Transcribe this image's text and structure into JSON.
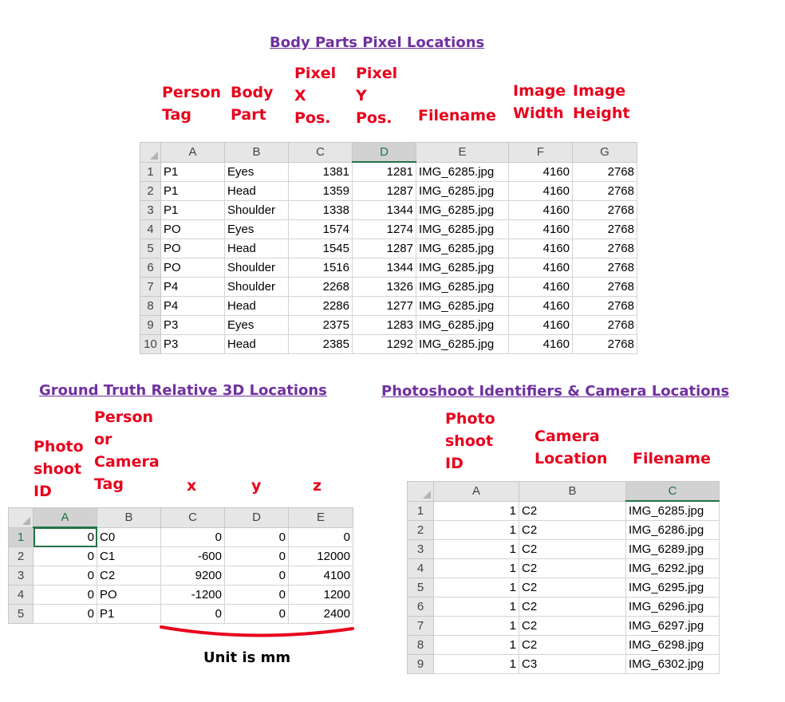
{
  "body_parts": {
    "title": "Body Parts Pixel Locations",
    "headers": {
      "person_tag": "Person\nTag",
      "body_part": "Body\nPart",
      "pixel_x": "Pixel\nX\nPos.",
      "pixel_y": "Pixel\nY\nPos.",
      "filename": "Filename",
      "image_width": "Image\nWidth",
      "image_height": "Image\nHeight"
    },
    "columns": [
      "A",
      "B",
      "C",
      "D",
      "E",
      "F",
      "G"
    ],
    "rows": [
      {
        "n": "1",
        "a": "P1",
        "b": "Eyes",
        "c": "1381",
        "d": "1281",
        "e": "IMG_6285.jpg",
        "f": "4160",
        "g": "2768"
      },
      {
        "n": "2",
        "a": "P1",
        "b": "Head",
        "c": "1359",
        "d": "1287",
        "e": "IMG_6285.jpg",
        "f": "4160",
        "g": "2768"
      },
      {
        "n": "3",
        "a": "P1",
        "b": "Shoulder",
        "c": "1338",
        "d": "1344",
        "e": "IMG_6285.jpg",
        "f": "4160",
        "g": "2768"
      },
      {
        "n": "4",
        "a": "PO",
        "b": "Eyes",
        "c": "1574",
        "d": "1274",
        "e": "IMG_6285.jpg",
        "f": "4160",
        "g": "2768"
      },
      {
        "n": "5",
        "a": "PO",
        "b": "Head",
        "c": "1545",
        "d": "1287",
        "e": "IMG_6285.jpg",
        "f": "4160",
        "g": "2768"
      },
      {
        "n": "6",
        "a": "PO",
        "b": "Shoulder",
        "c": "1516",
        "d": "1344",
        "e": "IMG_6285.jpg",
        "f": "4160",
        "g": "2768"
      },
      {
        "n": "7",
        "a": "P4",
        "b": "Shoulder",
        "c": "2268",
        "d": "1326",
        "e": "IMG_6285.jpg",
        "f": "4160",
        "g": "2768"
      },
      {
        "n": "8",
        "a": "P4",
        "b": "Head",
        "c": "2286",
        "d": "1277",
        "e": "IMG_6285.jpg",
        "f": "4160",
        "g": "2768"
      },
      {
        "n": "9",
        "a": "P3",
        "b": "Eyes",
        "c": "2375",
        "d": "1283",
        "e": "IMG_6285.jpg",
        "f": "4160",
        "g": "2768"
      },
      {
        "n": "10",
        "a": "P3",
        "b": "Head",
        "c": "2385",
        "d": "1292",
        "e": "IMG_6285.jpg",
        "f": "4160",
        "g": "2768"
      }
    ]
  },
  "ground_truth": {
    "title": "Ground Truth Relative 3D Locations",
    "headers": {
      "photoshoot_id": "Photo\nshoot\nID",
      "person_or_camera_tag": "Person\nor\nCamera\nTag",
      "x": "x",
      "y": "y",
      "z": "z"
    },
    "columns": [
      "A",
      "B",
      "C",
      "D",
      "E"
    ],
    "rows": [
      {
        "n": "1",
        "a": "0",
        "b": "C0",
        "c": "0",
        "d": "0",
        "e": "0"
      },
      {
        "n": "2",
        "a": "0",
        "b": "C1",
        "c": "-600",
        "d": "0",
        "e": "12000"
      },
      {
        "n": "3",
        "a": "0",
        "b": "C2",
        "c": "9200",
        "d": "0",
        "e": "4100"
      },
      {
        "n": "4",
        "a": "0",
        "b": "PO",
        "c": "-1200",
        "d": "0",
        "e": "1200"
      },
      {
        "n": "5",
        "a": "0",
        "b": "P1",
        "c": "0",
        "d": "0",
        "e": "2400"
      }
    ],
    "unit_note": "Unit is mm"
  },
  "photoshoot": {
    "title": "Photoshoot Identifiers & Camera Locations",
    "headers": {
      "photoshoot_id": "Photo\nshoot\nID",
      "camera_location": "Camera\nLocation",
      "filename": "Filename"
    },
    "columns": [
      "A",
      "B",
      "C"
    ],
    "rows": [
      {
        "n": "1",
        "a": "1",
        "b": "C2",
        "c": "IMG_6285.jpg"
      },
      {
        "n": "2",
        "a": "1",
        "b": "C2",
        "c": "IMG_6286.jpg"
      },
      {
        "n": "3",
        "a": "1",
        "b": "C2",
        "c": "IMG_6289.jpg"
      },
      {
        "n": "4",
        "a": "1",
        "b": "C2",
        "c": "IMG_6292.jpg"
      },
      {
        "n": "5",
        "a": "1",
        "b": "C2",
        "c": "IMG_6295.jpg"
      },
      {
        "n": "6",
        "a": "1",
        "b": "C2",
        "c": "IMG_6296.jpg"
      },
      {
        "n": "7",
        "a": "1",
        "b": "C2",
        "c": "IMG_6297.jpg"
      },
      {
        "n": "8",
        "a": "1",
        "b": "C2",
        "c": "IMG_6298.jpg"
      },
      {
        "n": "9",
        "a": "1",
        "b": "C3",
        "c": "IMG_6302.jpg"
      }
    ]
  },
  "colors": {
    "title": "#7030a0",
    "header_text": "#e8001c",
    "unit_underline": "#e8001c",
    "selection": "#217346"
  }
}
